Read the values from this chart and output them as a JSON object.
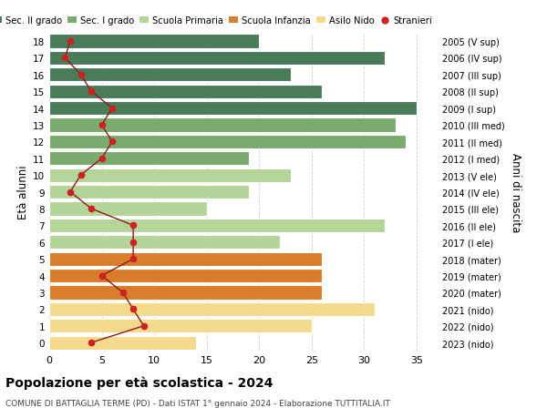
{
  "ages": [
    18,
    17,
    16,
    15,
    14,
    13,
    12,
    11,
    10,
    9,
    8,
    7,
    6,
    5,
    4,
    3,
    2,
    1,
    0
  ],
  "right_labels": [
    "2005 (V sup)",
    "2006 (IV sup)",
    "2007 (III sup)",
    "2008 (II sup)",
    "2009 (I sup)",
    "2010 (III med)",
    "2011 (II med)",
    "2012 (I med)",
    "2013 (V ele)",
    "2014 (IV ele)",
    "2015 (III ele)",
    "2016 (II ele)",
    "2017 (I ele)",
    "2018 (mater)",
    "2019 (mater)",
    "2020 (mater)",
    "2021 (nido)",
    "2022 (nido)",
    "2023 (nido)"
  ],
  "bar_values": [
    20,
    32,
    23,
    26,
    35,
    33,
    34,
    19,
    23,
    19,
    15,
    32,
    22,
    26,
    26,
    26,
    31,
    25,
    14
  ],
  "bar_colors": [
    "#4a7c59",
    "#4a7c59",
    "#4a7c59",
    "#4a7c59",
    "#4a7c59",
    "#7aab6e",
    "#7aab6e",
    "#7aab6e",
    "#b5d49a",
    "#b5d49a",
    "#b5d49a",
    "#b5d49a",
    "#b5d49a",
    "#d97c2b",
    "#d97c2b",
    "#d97c2b",
    "#f5d98c",
    "#f5d98c",
    "#f5d98c"
  ],
  "stranieri_values": [
    2,
    1.5,
    3,
    4,
    6,
    5,
    6,
    5,
    3,
    2,
    4,
    8,
    8,
    8,
    5,
    7,
    8,
    9,
    4
  ],
  "legend_labels": [
    "Sec. II grado",
    "Sec. I grado",
    "Scuola Primaria",
    "Scuola Infanzia",
    "Asilo Nido",
    "Stranieri"
  ],
  "legend_colors": [
    "#4a7c59",
    "#7aab6e",
    "#b5d49a",
    "#d97c2b",
    "#f5d98c",
    "#cc2222"
  ],
  "title": "Popolazione per età scolastica - 2024",
  "subtitle": "COMUNE DI BATTAGLIA TERME (PD) - Dati ISTAT 1° gennaio 2024 - Elaborazione TUTTITALIA.IT",
  "ylabel_left": "Età alunni",
  "ylabel_right": "Anni di nascita",
  "xlim": [
    0,
    37
  ],
  "xticks": [
    0,
    5,
    10,
    15,
    20,
    25,
    30,
    35
  ],
  "grid_color": "#cccccc",
  "stranieri_line_color": "#8b1a1a",
  "stranieri_dot_color": "#cc2222"
}
